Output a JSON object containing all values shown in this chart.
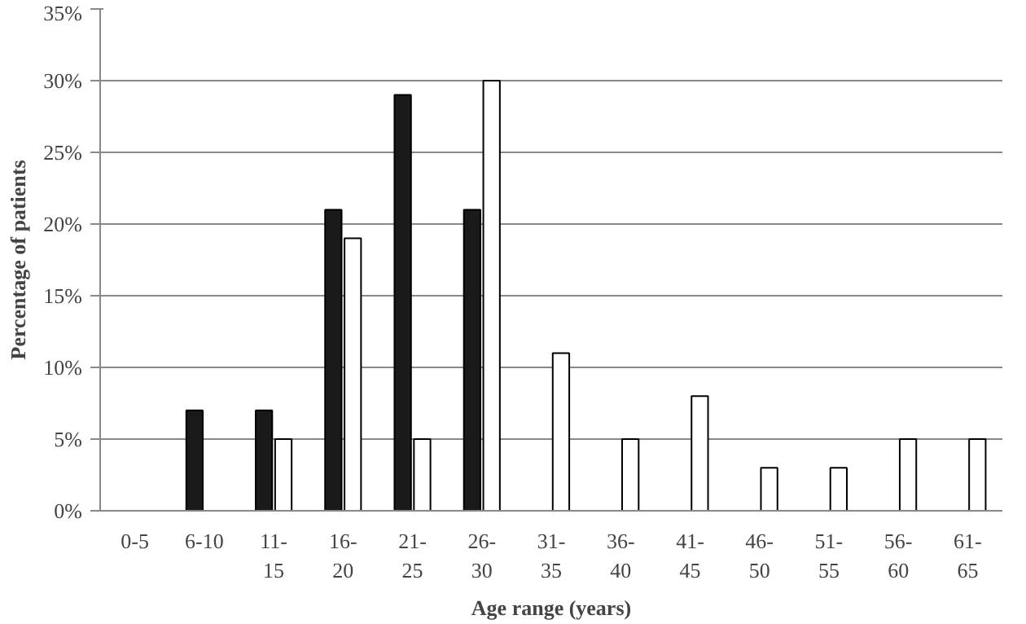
{
  "chart_data": {
    "type": "bar",
    "xlabel": "Age range (years)",
    "ylabel": "Percentage of patients",
    "categories": [
      "0-5",
      "6-10",
      "11-15",
      "16-20",
      "21-25",
      "26-30",
      "31-35",
      "36-40",
      "41-45",
      "46-50",
      "51-55",
      "56-60",
      "61-65"
    ],
    "series": [
      {
        "color": "#1a1a1a",
        "values": [
          0,
          7,
          7,
          21,
          29,
          21,
          0,
          0,
          0,
          0,
          0,
          0,
          0
        ]
      },
      {
        "color": "#ffffff",
        "values": [
          0,
          0,
          5,
          19,
          5,
          30,
          11,
          5,
          8,
          3,
          3,
          5,
          5
        ]
      }
    ],
    "ylim": [
      0,
      35
    ],
    "yticks": [
      {
        "value": 0,
        "label": "0%"
      },
      {
        "value": 5,
        "label": "5%"
      },
      {
        "value": 10,
        "label": "10%"
      },
      {
        "value": 15,
        "label": "15%"
      },
      {
        "value": 20,
        "label": "20%"
      },
      {
        "value": 25,
        "label": "25%"
      },
      {
        "value": 30,
        "label": "30%"
      },
      {
        "value": 35,
        "label": "35%"
      }
    ],
    "grid": "y"
  }
}
